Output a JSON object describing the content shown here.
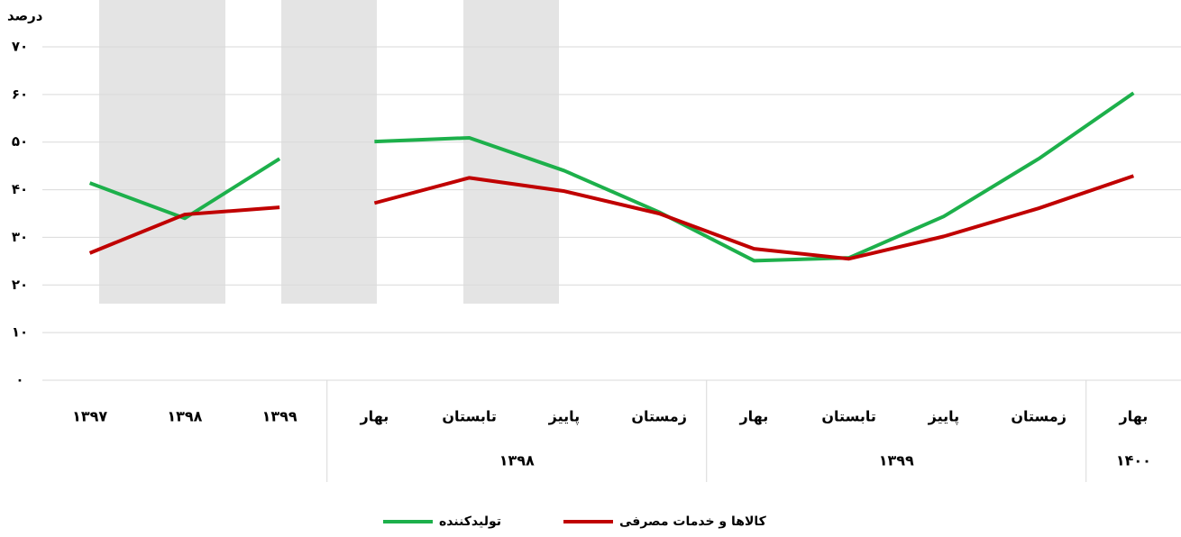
{
  "chart_data": {
    "type": "line",
    "y_label": "درصد",
    "categories": [
      "۱۳۹۷",
      "۱۳۹۸",
      "۱۳۹۹",
      "بهار",
      "تابستان",
      "پاییز",
      "زمستان",
      "بهار",
      "تابستان",
      "پاییز",
      "زمستان",
      "بهار"
    ],
    "groups": [
      {
        "label": null,
        "size": 3
      },
      {
        "label": "۱۳۹۸",
        "size": 4
      },
      {
        "label": "۱۳۹۹",
        "size": 4
      },
      {
        "label": "۱۴۰۰",
        "size": 1
      }
    ],
    "series": [
      {
        "name": "تولیدکننده",
        "color": "#1db04b",
        "values": [
          41.4,
          34.0,
          46.5,
          50.1,
          50.9,
          44.0,
          35.3,
          25.1,
          25.7,
          34.4,
          46.5,
          60.3
        ]
      },
      {
        "name": "کالاها و خدمات مصرفی",
        "color": "#c00000",
        "values": [
          26.7,
          34.8,
          36.3,
          37.2,
          42.5,
          39.7,
          35.0,
          27.6,
          25.5,
          30.2,
          36.1,
          42.9
        ]
      }
    ],
    "ylim": [
      0,
      70
    ],
    "yticks": [
      {
        "value": 0,
        "label": "۰"
      },
      {
        "value": 10,
        "label": "۱۰"
      },
      {
        "value": 20,
        "label": "۲۰"
      },
      {
        "value": 30,
        "label": "۳۰"
      },
      {
        "value": 40,
        "label": "۴۰"
      },
      {
        "value": 50,
        "label": "۵۰"
      },
      {
        "value": 60,
        "label": "۶۰"
      },
      {
        "value": 70,
        "label": "۷۰"
      }
    ],
    "grid": true
  }
}
